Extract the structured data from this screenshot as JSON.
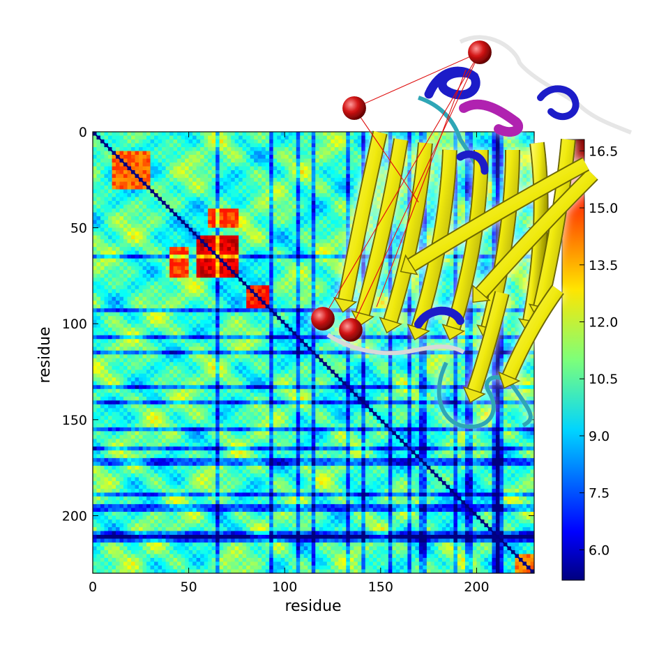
{
  "chart_data": {
    "type": "heatmap",
    "title": "",
    "xlabel": "residue",
    "ylabel": "residue",
    "x_range": [
      0,
      230
    ],
    "y_range": [
      0,
      230
    ],
    "y_inverted": true,
    "x_ticks": [
      "0",
      "50",
      "100",
      "150",
      "200"
    ],
    "y_ticks": [
      "0",
      "50",
      "100",
      "150",
      "200"
    ],
    "colorbar": {
      "colormap": "jet",
      "range": [
        5.2,
        16.8
      ],
      "ticks": [
        "6.0",
        "7.5",
        "9.0",
        "10.5",
        "12.0",
        "13.5",
        "15.0",
        "16.5"
      ]
    },
    "diagonal_value": 5.2,
    "features": {
      "low_value_residues": [
        65,
        93,
        107,
        115,
        133,
        141,
        155,
        165,
        172,
        189,
        196,
        210,
        212
      ],
      "high_value_blocks": [
        {
          "x": [
            55,
            75
          ],
          "y": [
            55,
            75
          ],
          "value": 15.8
        },
        {
          "x": [
            80,
            92
          ],
          "y": [
            80,
            92
          ],
          "value": 15.0
        },
        {
          "x": [
            40,
            50
          ],
          "y": [
            60,
            75
          ],
          "value": 14.5
        },
        {
          "x": [
            60,
            75
          ],
          "y": [
            40,
            50
          ],
          "value": 14.5
        },
        {
          "x": [
            10,
            30
          ],
          "y": [
            10,
            30
          ],
          "value": 14.2
        },
        {
          "x": [
            220,
            230
          ],
          "y": [
            220,
            230
          ],
          "value": 14.0
        }
      ]
    }
  },
  "overlay": {
    "name": "protein-structure-illustration",
    "structure_colors": {
      "beta_strand": "#f2ee20",
      "helix": "#1a1ac8",
      "helix_3_10": "#b020b0",
      "coil": "#30a8b8",
      "turn": "#e8e8e8",
      "atom": "#cc1010",
      "distance_line": "#e01010"
    }
  }
}
